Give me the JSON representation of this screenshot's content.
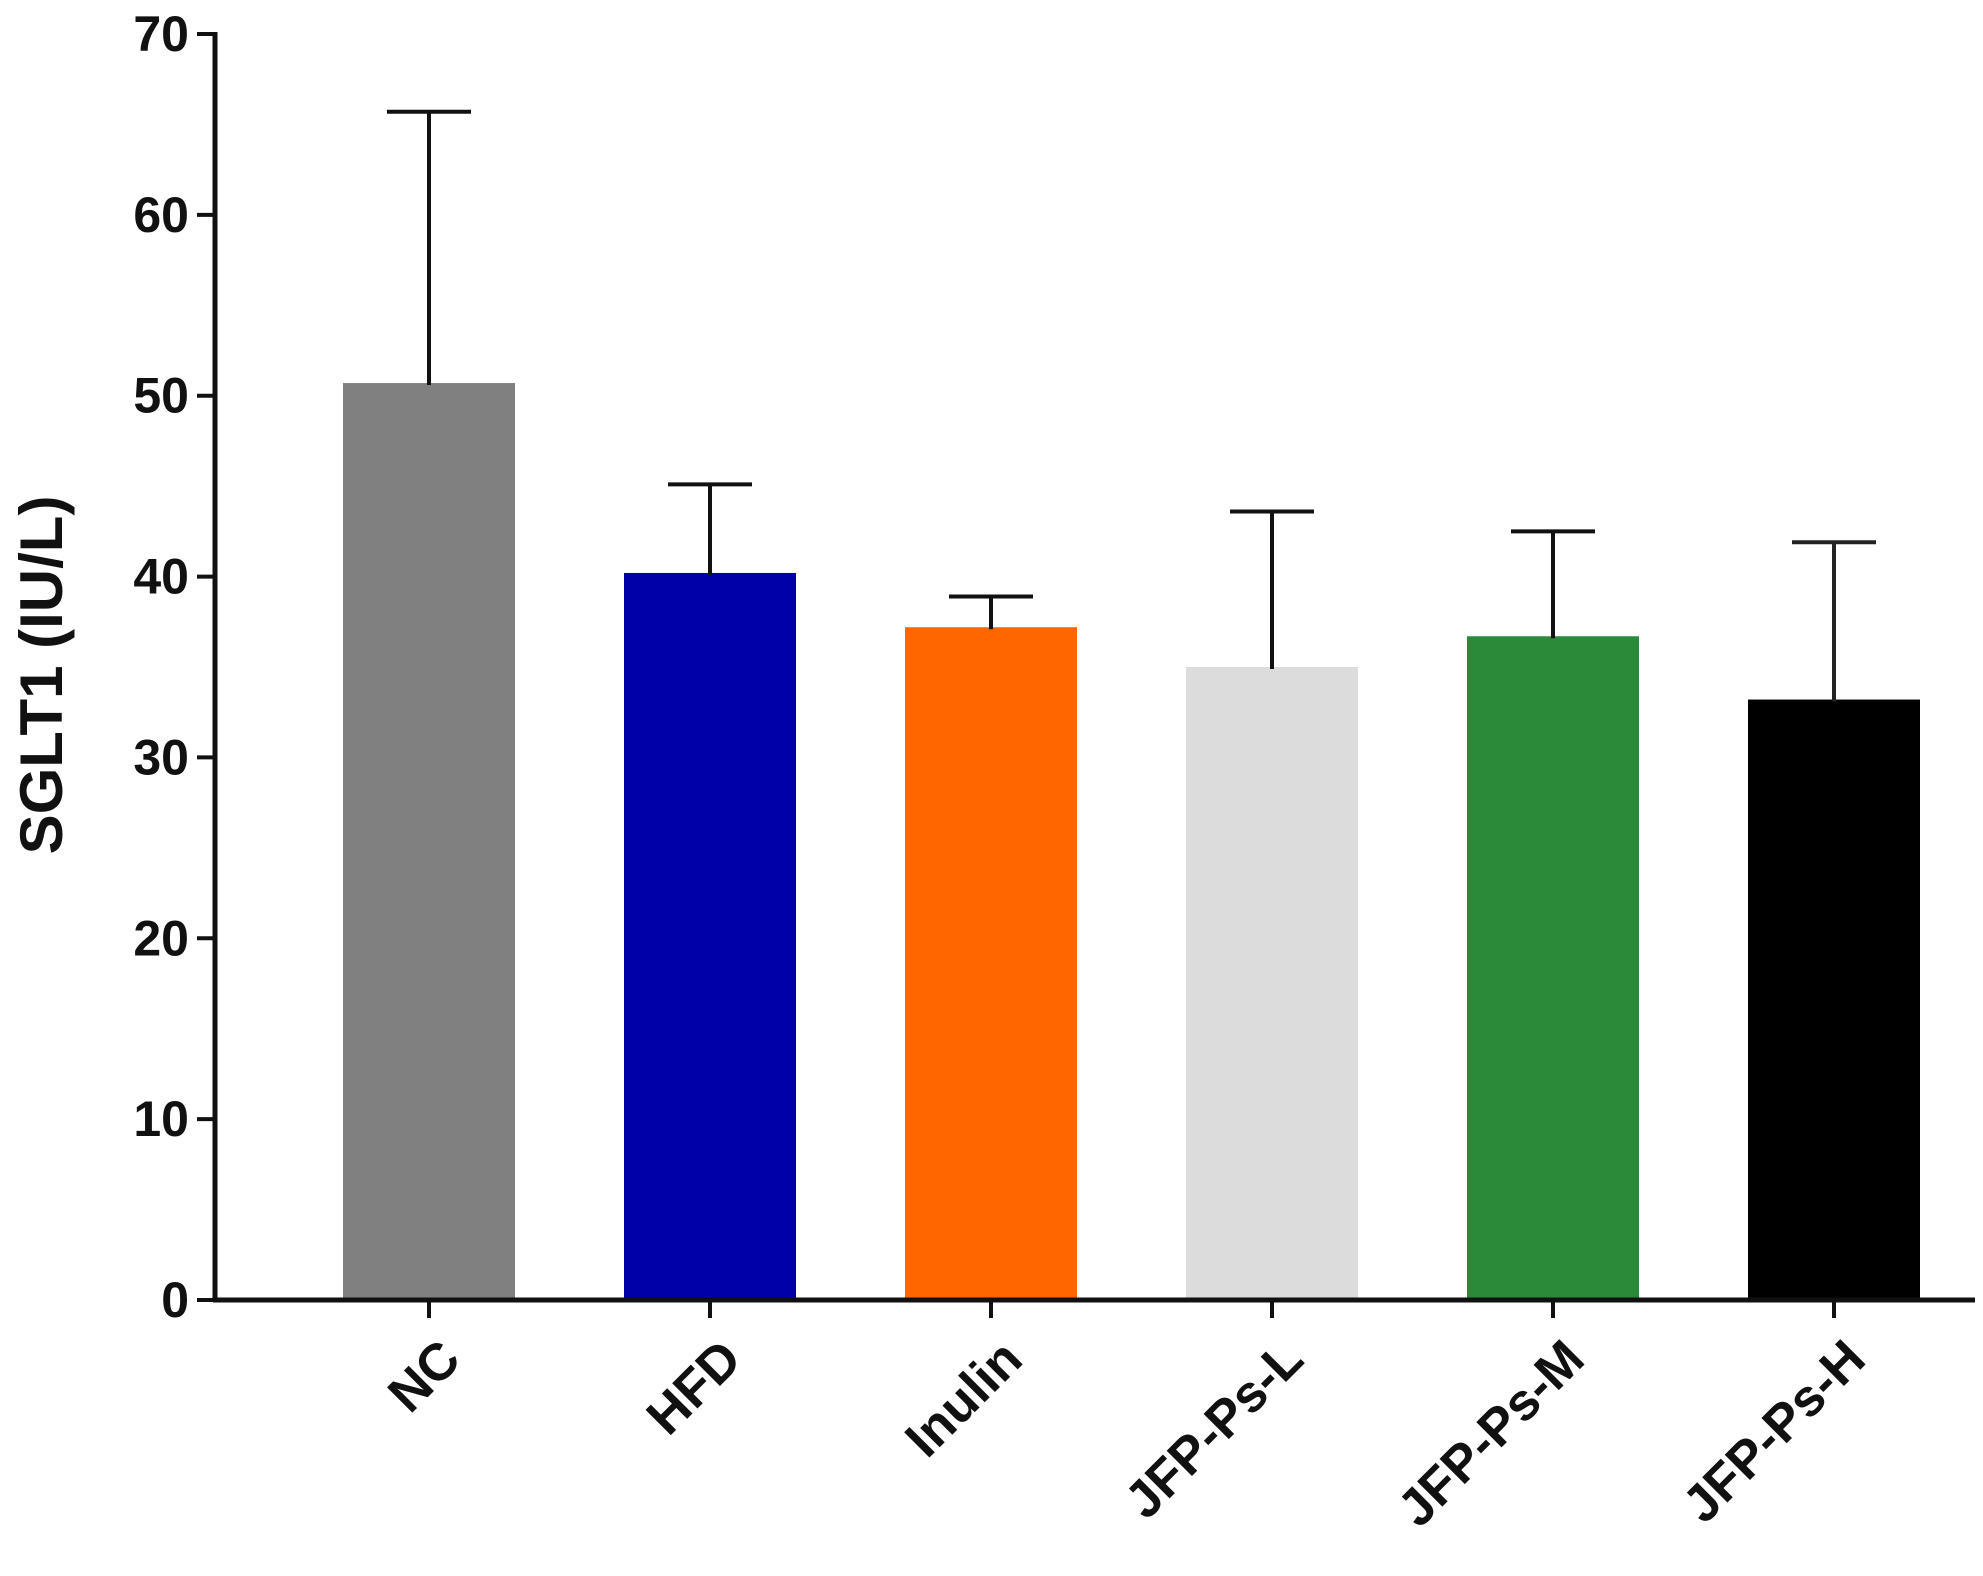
{
  "chart_data": {
    "type": "bar",
    "title": "",
    "xlabel": "",
    "ylabel": "SGLT1 (IU/L)",
    "ylim": [
      0,
      70
    ],
    "yticks": [
      0,
      10,
      20,
      30,
      40,
      50,
      60,
      70
    ],
    "grid": false,
    "categories": [
      "NC",
      "HFD",
      "Inulin",
      "JFP-Ps-L",
      "JFP-Ps-M",
      "JFP-Ps-H"
    ],
    "values": [
      50.7,
      40.2,
      37.2,
      35.0,
      36.7,
      33.2
    ],
    "error_upper": [
      65.7,
      45.1,
      38.9,
      43.6,
      42.5,
      41.9
    ],
    "colors": [
      "#808080",
      "#0000a8",
      "#ff6600",
      "#dcdcdc",
      "#2a8a3a",
      "#000000"
    ]
  }
}
